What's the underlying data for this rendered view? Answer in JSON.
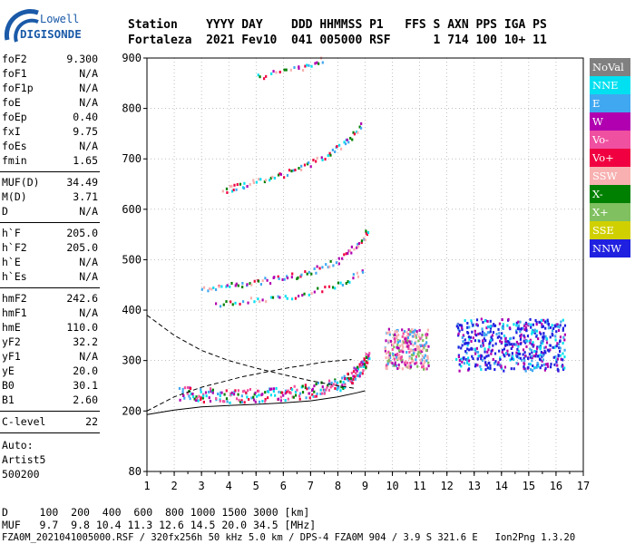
{
  "logo": {
    "line1": "Lowell",
    "line2": "DIGISONDE",
    "color": "#1a5aa8"
  },
  "header": {
    "line1": "Station    YYYY DAY    DDD HHMMSS P1   FFS S AXN PPS IGA PS",
    "line2": "Fortaleza  2021 Fev10  041 005000 RSF      1 714 100 10+ 11"
  },
  "params_group1": [
    {
      "name": "foF2",
      "value": "9.300"
    },
    {
      "name": "foF1",
      "value": "N/A"
    },
    {
      "name": "foF1p",
      "value": "N/A"
    },
    {
      "name": "foE",
      "value": "N/A"
    },
    {
      "name": "foEp",
      "value": "0.40"
    },
    {
      "name": "fxI",
      "value": "9.75"
    },
    {
      "name": "foEs",
      "value": "N/A"
    },
    {
      "name": "fmin",
      "value": "1.65"
    }
  ],
  "params_group2": [
    {
      "name": "MUF(D)",
      "value": "34.49"
    },
    {
      "name": "M(D)",
      "value": "3.71"
    },
    {
      "name": "D",
      "value": "N/A"
    }
  ],
  "params_group3": [
    {
      "name": "h`F",
      "value": "205.0"
    },
    {
      "name": "h`F2",
      "value": "205.0"
    },
    {
      "name": "h`E",
      "value": "N/A"
    },
    {
      "name": "h`Es",
      "value": "N/A"
    }
  ],
  "params_group4": [
    {
      "name": "hmF2",
      "value": "242.6"
    },
    {
      "name": "hmF1",
      "value": "N/A"
    },
    {
      "name": "hmE",
      "value": "110.0"
    },
    {
      "name": "yF2",
      "value": "32.2"
    },
    {
      "name": "yF1",
      "value": "N/A"
    },
    {
      "name": "yE",
      "value": "20.0"
    },
    {
      "name": "B0",
      "value": "30.1"
    },
    {
      "name": "B1",
      "value": "2.60"
    }
  ],
  "params_group5": [
    {
      "name": "C-level",
      "value": "22"
    }
  ],
  "auto": {
    "line1": "Auto:",
    "line2": "Artist5",
    "line3": "500200"
  },
  "legend": [
    {
      "label": "NoVal",
      "color": "#808080"
    },
    {
      "label": "NNE",
      "color": "#00e0f0"
    },
    {
      "label": "E",
      "color": "#40a8f0"
    },
    {
      "label": "W",
      "color": "#b000b0"
    },
    {
      "label": "Vo-",
      "color": "#f050a0"
    },
    {
      "label": "Vo+",
      "color": "#f00040"
    },
    {
      "label": "SSW",
      "color": "#f8b0b0"
    },
    {
      "label": "X-",
      "color": "#008000"
    },
    {
      "label": "X+",
      "color": "#80c060"
    },
    {
      "label": "SSE",
      "color": "#d0d000"
    },
    {
      "label": "NNW",
      "color": "#2020e0"
    }
  ],
  "bottom": {
    "line1": "D     100  200  400  600  800 1000 1500 3000 [km]",
    "line2": "MUF   9.7  9.8 10.4 11.3 12.6 14.5 20.0 34.5 [MHz]",
    "line3": "FZA0M_2021041005000.RSF / 320fx256h 50 kHz 5.0 km / DPS-4 FZA0M 904 / 3.9 S 321.6 E   Ion2Png 1.3.20"
  },
  "chart_data": {
    "type": "scatter",
    "title": "",
    "xlabel": "",
    "ylabel": "",
    "xlim": [
      1,
      17
    ],
    "ylim": [
      80,
      900
    ],
    "xticks": [
      1,
      2,
      3,
      4,
      5,
      6,
      7,
      8,
      9,
      10,
      11,
      12,
      13,
      14,
      15,
      16,
      17
    ],
    "yticks": [
      80,
      200,
      300,
      400,
      500,
      600,
      700,
      800,
      900
    ],
    "grid": true,
    "series": [
      {
        "kind": "trace",
        "values": [
          {
            "x": 2.2,
            "y": 238
          },
          {
            "x": 3.0,
            "y": 234
          },
          {
            "x": 4.0,
            "y": 232
          },
          {
            "x": 5.0,
            "y": 233
          },
          {
            "x": 6.0,
            "y": 236
          },
          {
            "x": 7.0,
            "y": 242
          },
          {
            "x": 7.8,
            "y": 252
          },
          {
            "x": 8.4,
            "y": 265
          },
          {
            "x": 8.8,
            "y": 285
          },
          {
            "x": 9.1,
            "y": 310
          }
        ]
      },
      {
        "kind": "trace",
        "values": [
          {
            "x": 3.0,
            "y": 445
          },
          {
            "x": 4.0,
            "y": 452
          },
          {
            "x": 5.0,
            "y": 458
          },
          {
            "x": 6.0,
            "y": 465
          },
          {
            "x": 7.0,
            "y": 478
          },
          {
            "x": 8.0,
            "y": 500
          },
          {
            "x": 8.7,
            "y": 530
          },
          {
            "x": 9.1,
            "y": 560
          }
        ]
      },
      {
        "kind": "trace",
        "values": [
          {
            "x": 3.8,
            "y": 640
          },
          {
            "x": 4.5,
            "y": 650
          },
          {
            "x": 5.5,
            "y": 663
          },
          {
            "x": 6.5,
            "y": 680
          },
          {
            "x": 7.5,
            "y": 705
          },
          {
            "x": 8.3,
            "y": 735
          },
          {
            "x": 8.9,
            "y": 770
          }
        ]
      },
      {
        "kind": "trace",
        "values": [
          {
            "x": 3.5,
            "y": 415
          },
          {
            "x": 5.0,
            "y": 423
          },
          {
            "x": 6.5,
            "y": 432
          },
          {
            "x": 8.0,
            "y": 452
          },
          {
            "x": 9.0,
            "y": 480
          }
        ]
      },
      {
        "kind": "trace",
        "values": [
          {
            "x": 5.0,
            "y": 865
          },
          {
            "x": 6.5,
            "y": 880
          },
          {
            "x": 7.5,
            "y": 900
          }
        ]
      }
    ],
    "blocks": [
      {
        "x": [
          9.7,
          11.3
        ],
        "y": [
          285,
          365
        ]
      },
      {
        "x": [
          12.3,
          16.3
        ],
        "y": [
          282,
          385
        ]
      }
    ],
    "lines": [
      {
        "style": "dashed",
        "values": [
          {
            "x": 1.0,
            "y": 390
          },
          {
            "x": 1.5,
            "y": 370
          },
          {
            "x": 2.0,
            "y": 350
          },
          {
            "x": 3.0,
            "y": 320
          },
          {
            "x": 4.0,
            "y": 300
          },
          {
            "x": 5.0,
            "y": 285
          },
          {
            "x": 6.0,
            "y": 272
          },
          {
            "x": 7.0,
            "y": 260
          },
          {
            "x": 8.0,
            "y": 250
          },
          {
            "x": 8.6,
            "y": 245
          }
        ]
      },
      {
        "style": "dashed",
        "values": [
          {
            "x": 1.0,
            "y": 200
          },
          {
            "x": 2.0,
            "y": 228
          },
          {
            "x": 3.0,
            "y": 247
          },
          {
            "x": 4.5,
            "y": 268
          },
          {
            "x": 6.0,
            "y": 284
          },
          {
            "x": 7.5,
            "y": 297
          },
          {
            "x": 8.5,
            "y": 302
          }
        ]
      },
      {
        "style": "solid",
        "values": [
          {
            "x": 1.0,
            "y": 193
          },
          {
            "x": 2.0,
            "y": 202
          },
          {
            "x": 3.0,
            "y": 208
          },
          {
            "x": 4.0,
            "y": 211
          },
          {
            "x": 5.0,
            "y": 213
          },
          {
            "x": 6.0,
            "y": 216
          },
          {
            "x": 7.0,
            "y": 220
          },
          {
            "x": 8.0,
            "y": 228
          },
          {
            "x": 8.7,
            "y": 236
          },
          {
            "x": 9.0,
            "y": 240
          }
        ]
      }
    ]
  }
}
